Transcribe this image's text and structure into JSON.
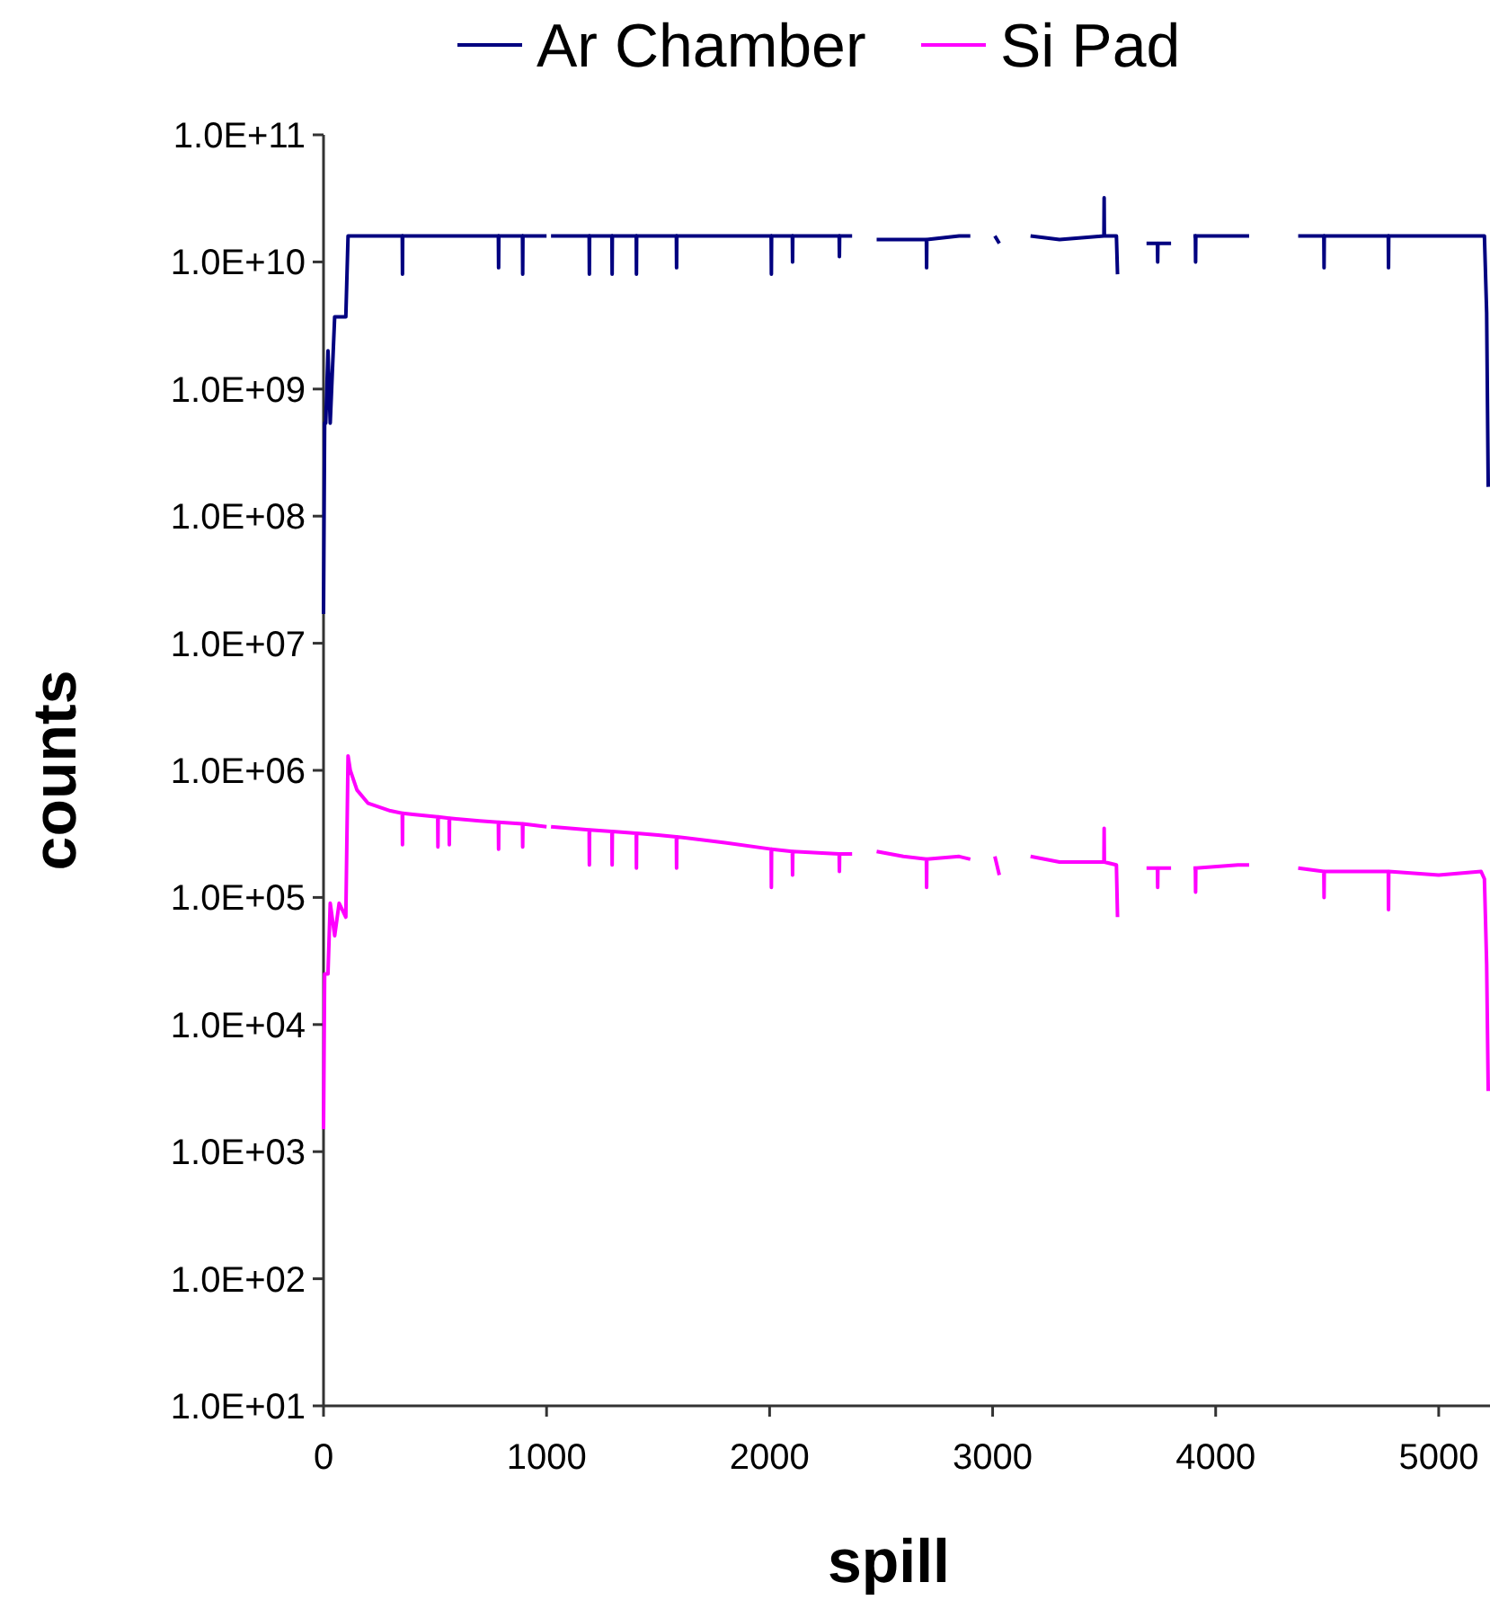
{
  "chart_data": {
    "type": "line",
    "xlabel": "spill",
    "ylabel": "counts",
    "log": "y",
    "legend": "top",
    "grid": false,
    "marker": "none",
    "line_style": "solid",
    "x": [
      0,
      5,
      10,
      20,
      30,
      50,
      70,
      100,
      110,
      120,
      150,
      200,
      300,
      353,
      354,
      355,
      400,
      512,
      513,
      514,
      563,
      564,
      565,
      700,
      784,
      785,
      786,
      892,
      893,
      894,
      1000,
      1010,
      1020,
      1191,
      1192,
      1193,
      1293,
      1294,
      1295,
      1402,
      1403,
      1404,
      1500,
      1582,
      1583,
      1584,
      1800,
      2007,
      2008,
      2009,
      2102,
      2103,
      2104,
      2312,
      2313,
      2314,
      2370,
      2420,
      2480,
      2600,
      2703,
      2704,
      2705,
      2850,
      2900,
      2960,
      3010,
      3030,
      3100,
      3170,
      3300,
      3499,
      3500,
      3501,
      3555,
      3560,
      3620,
      3690,
      3739,
      3740,
      3741,
      3800,
      3850,
      3900,
      3909,
      3910,
      3911,
      4100,
      4150,
      4260,
      4370,
      4485,
      4486,
      4487,
      4600,
      4774,
      4775,
      4776,
      5000,
      5190,
      5205,
      5215,
      5222
    ],
    "series": [
      {
        "name": "Ar Chamber",
        "color": "#000080",
        "values": [
          17000000.0,
          540000000.0,
          540000000.0,
          2000000000.0,
          540000000.0,
          3700000000.0,
          3700000000.0,
          3700000000.0,
          16000000000.0,
          16000000000.0,
          16000000000.0,
          16000000000.0,
          16000000000.0,
          16000000000.0,
          8000000000.0,
          16000000000.0,
          16000000000.0,
          16000000000.0,
          16000000000.0,
          16000000000.0,
          16000000000.0,
          16000000000.0,
          16000000000.0,
          16000000000.0,
          16000000000.0,
          9000000000.0,
          16000000000.0,
          16000000000.0,
          8000000000.0,
          16000000000.0,
          16000000000.0,
          null,
          16000000000.0,
          16000000000.0,
          8000000000.0,
          16000000000.0,
          16000000000.0,
          8000000000.0,
          16000000000.0,
          16000000000.0,
          8000000000.0,
          16000000000.0,
          16000000000.0,
          16000000000.0,
          9000000000.0,
          16000000000.0,
          16000000000.0,
          16000000000.0,
          8000000000.0,
          16000000000.0,
          16000000000.0,
          10000000000.0,
          16000000000.0,
          16000000000.0,
          11000000000.0,
          16000000000.0,
          16000000000.0,
          null,
          15000000000.0,
          15000000000.0,
          15000000000.0,
          9000000000.0,
          15000000000.0,
          16000000000.0,
          16000000000.0,
          null,
          16000000000.0,
          14000000000.0,
          null,
          16000000000.0,
          15000000000.0,
          16000000000.0,
          32000000000.0,
          16000000000.0,
          16000000000.0,
          8000000000.0,
          null,
          14000000000.0,
          14000000000.0,
          10000000000.0,
          14000000000.0,
          14000000000.0,
          null,
          16000000000.0,
          16000000000.0,
          10000000000.0,
          16000000000.0,
          16000000000.0,
          16000000000.0,
          null,
          16000000000.0,
          16000000000.0,
          9000000000.0,
          16000000000.0,
          16000000000.0,
          16000000000.0,
          9000000000.0,
          16000000000.0,
          16000000000.0,
          16000000000.0,
          16000000000.0,
          4000000000.0,
          170000000.0
        ]
      },
      {
        "name": "Si Pad",
        "color": "#ff00ff",
        "values": [
          1500.0,
          25000.0,
          25000.0,
          25000.0,
          90000.0,
          50000.0,
          90000.0,
          70000.0,
          1300000.0,
          1000000.0,
          700000.0,
          550000.0,
          480000.0,
          460000.0,
          260000.0,
          460000.0,
          450000.0,
          430000.0,
          250000.0,
          430000.0,
          420000.0,
          260000.0,
          420000.0,
          400000.0,
          390000.0,
          240000.0,
          390000.0,
          380000.0,
          250000.0,
          380000.0,
          360000.0,
          null,
          360000.0,
          340000.0,
          180000.0,
          340000.0,
          330000.0,
          180000.0,
          330000.0,
          320000.0,
          170000.0,
          320000.0,
          310000.0,
          300000.0,
          170000.0,
          300000.0,
          270000.0,
          240000.0,
          120000.0,
          240000.0,
          230000.0,
          150000.0,
          230000.0,
          220000.0,
          160000.0,
          220000.0,
          220000.0,
          null,
          230000.0,
          210000.0,
          200000.0,
          120000.0,
          200000.0,
          210000.0,
          200000.0,
          null,
          210000.0,
          150000.0,
          null,
          210000.0,
          190000.0,
          190000.0,
          350000.0,
          190000.0,
          180000.0,
          70000.0,
          null,
          170000.0,
          170000.0,
          120000.0,
          170000.0,
          170000.0,
          null,
          170000.0,
          170000.0,
          110000.0,
          170000.0,
          180000.0,
          180000.0,
          null,
          170000.0,
          160000.0,
          100000.0,
          160000.0,
          160000.0,
          160000.0,
          80000.0,
          160000.0,
          150000.0,
          160000.0,
          140000.0,
          30000.0,
          3000.0
        ]
      }
    ],
    "xlim": [
      0,
      5230
    ],
    "xticks": [
      0,
      1000,
      2000,
      3000,
      4000,
      5000
    ],
    "ylim": [
      10,
      100000000000.0
    ],
    "yticks": [
      {
        "value": 10,
        "label": "1.0E+01"
      },
      {
        "value": 100,
        "label": "1.0E+02"
      },
      {
        "value": 1000,
        "label": "1.0E+03"
      },
      {
        "value": 10000,
        "label": "1.0E+04"
      },
      {
        "value": 100000,
        "label": "1.0E+05"
      },
      {
        "value": 1000000,
        "label": "1.0E+06"
      },
      {
        "value": 10000000,
        "label": "1.0E+07"
      },
      {
        "value": 100000000,
        "label": "1.0E+08"
      },
      {
        "value": 1000000000,
        "label": "1.0E+09"
      },
      {
        "value": 10000000000,
        "label": "1.0E+10"
      },
      {
        "value": 100000000000,
        "label": "1.0E+11"
      }
    ]
  }
}
